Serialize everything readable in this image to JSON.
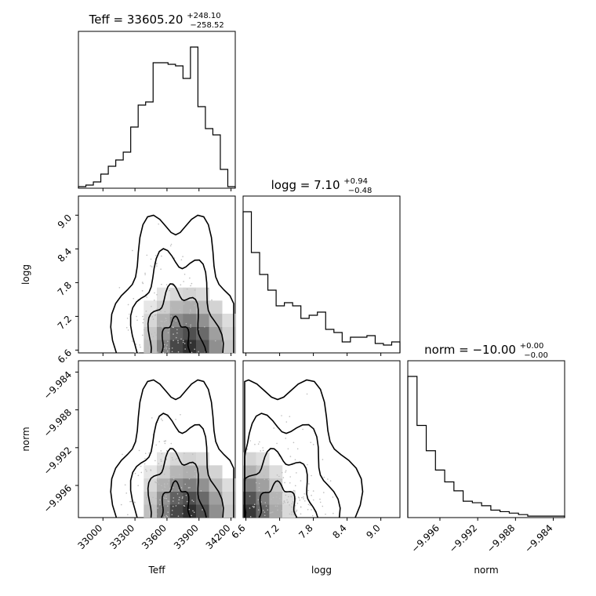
{
  "chart_data": {
    "type": "corner",
    "parameters": [
      "Teff",
      "logg",
      "norm"
    ],
    "titles": [
      {
        "param": "Teff",
        "prefix": "Teff = ",
        "value": "33605.20",
        "plus": "+248.10",
        "minus": "−258.52"
      },
      {
        "param": "logg",
        "prefix": "logg = ",
        "value": "7.10",
        "plus": "+0.94",
        "minus": "−0.48"
      },
      {
        "param": "norm",
        "prefix": "norm = ",
        "value": "−10.00",
        "plus": "+0.00",
        "minus": "−0.00"
      }
    ],
    "ranges": {
      "Teff": [
        32770,
        34240
      ],
      "logg": [
        6.55,
        9.34
      ],
      "norm": [
        -9.9994,
        -9.9828
      ]
    },
    "ticks": {
      "Teff": [
        {
          "v": 33000,
          "label": "33000"
        },
        {
          "v": 33300,
          "label": "33300"
        },
        {
          "v": 33600,
          "label": "33600"
        },
        {
          "v": 33900,
          "label": "33900"
        },
        {
          "v": 34200,
          "label": "34200"
        }
      ],
      "logg": [
        {
          "v": 6.6,
          "label": "6.6"
        },
        {
          "v": 7.2,
          "label": "7.2"
        },
        {
          "v": 7.8,
          "label": "7.8"
        },
        {
          "v": 8.4,
          "label": "8.4"
        },
        {
          "v": 9.0,
          "label": "9.0"
        }
      ],
      "norm": [
        {
          "v": -9.996,
          "label": "−9.996"
        },
        {
          "v": -9.992,
          "label": "−9.992"
        },
        {
          "v": -9.988,
          "label": "−9.988"
        },
        {
          "v": -9.984,
          "label": "−9.984"
        }
      ]
    },
    "histograms": {
      "Teff": [
        1,
        2,
        4,
        9,
        14,
        18,
        23,
        39,
        53,
        55,
        80,
        80,
        79,
        78,
        70,
        90,
        52,
        38,
        34,
        12,
        1
      ],
      "logg": [
        90,
        64,
        50,
        40,
        30,
        32,
        30,
        22,
        24,
        26,
        15,
        13,
        7,
        10,
        10,
        11,
        6,
        5,
        7
      ],
      "norm": [
        95,
        62,
        45,
        32,
        24,
        18,
        11,
        10,
        8,
        5,
        4,
        3,
        2,
        1,
        1,
        1,
        1
      ]
    },
    "axis_labels": {
      "Teff": "Teff",
      "logg": "logg",
      "norm": "norm"
    },
    "grid": false
  }
}
